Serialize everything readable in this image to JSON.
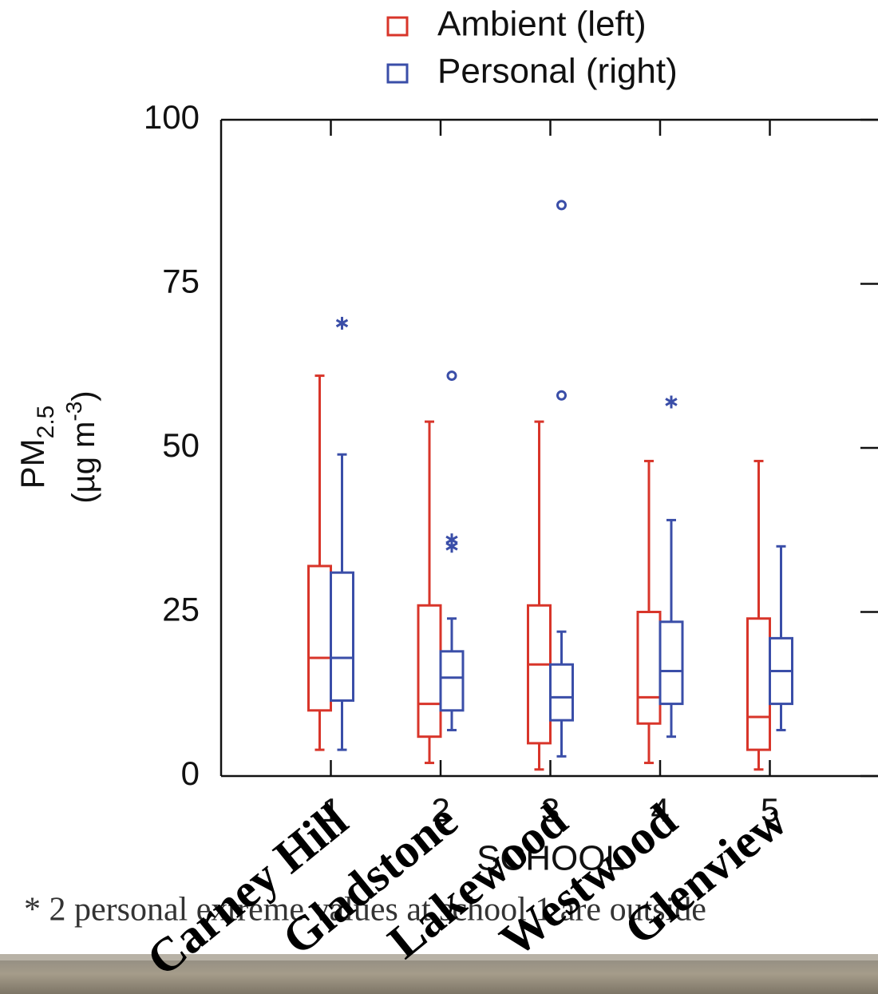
{
  "chart_data": {
    "type": "box",
    "x_label": "SCHOOL",
    "y_label": {
      "main": "PM",
      "sub": "2.5",
      "unit_open": "(µg m",
      "sup": "-3",
      "unit_close": ")"
    },
    "x": [
      1,
      2,
      3,
      4,
      5
    ],
    "xlim": [
      0,
      6
    ],
    "xticks": [
      1,
      2,
      3,
      4,
      5
    ],
    "ylim": [
      0,
      100
    ],
    "yticks": [
      0,
      25,
      50,
      75,
      100
    ],
    "legend_position": "top",
    "series": [
      {
        "name": "Ambient (left)",
        "color": "#d8352a",
        "values": [
          {
            "low": 4,
            "q1": 10,
            "median": 18,
            "q3": 32,
            "high": 61
          },
          {
            "low": 2,
            "q1": 6,
            "median": 11,
            "q3": 26,
            "high": 54
          },
          {
            "low": 1,
            "q1": 5,
            "median": 17,
            "q3": 26,
            "high": 54
          },
          {
            "low": 2,
            "q1": 8,
            "median": 12,
            "q3": 25,
            "high": 48
          },
          {
            "low": 1,
            "q1": 4,
            "median": 9,
            "q3": 24,
            "high": 48
          }
        ],
        "outliers": []
      },
      {
        "name": "Personal (right)",
        "color": "#3a4ea8",
        "values": [
          {
            "low": 4,
            "q1": 11.5,
            "median": 18,
            "q3": 31,
            "high": 49
          },
          {
            "low": 7,
            "q1": 10,
            "median": 15,
            "q3": 19,
            "high": 24
          },
          {
            "low": 3,
            "q1": 8.5,
            "median": 12,
            "q3": 17,
            "high": 22
          },
          {
            "low": 6,
            "q1": 11,
            "median": 16,
            "q3": 23.5,
            "high": 39
          },
          {
            "low": 7,
            "q1": 11,
            "median": 16,
            "q3": 21,
            "high": 35
          }
        ],
        "outliers": [
          {
            "x": 1,
            "value": 69,
            "marker": "star"
          },
          {
            "x": 2,
            "value": 61,
            "marker": "circle"
          },
          {
            "x": 2,
            "value": 36,
            "marker": "star"
          },
          {
            "x": 2,
            "value": 35,
            "marker": "star"
          },
          {
            "x": 3,
            "value": 87,
            "marker": "circle"
          },
          {
            "x": 3,
            "value": 58,
            "marker": "circle"
          },
          {
            "x": 4,
            "value": 57,
            "marker": "star"
          }
        ]
      }
    ],
    "footnote": "* 2 personal extreme values at school 1 are outside",
    "overlay_labels": [
      "Carney Hill",
      "Gladstone",
      "Lakewood",
      "Westwood",
      "Glenview"
    ]
  }
}
